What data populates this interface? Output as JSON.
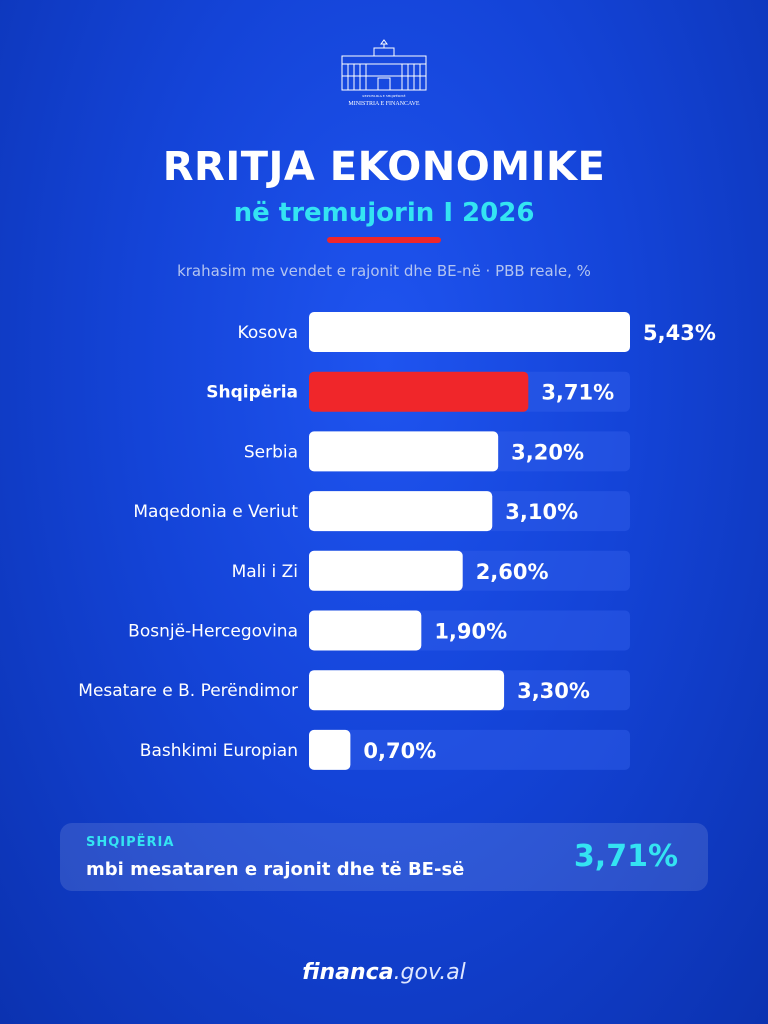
{
  "logo": {
    "line1": "REPUBLIKA E SHQIPËRISË",
    "line2": "MINISTRIA E FINANCAVE"
  },
  "title": "RRITJA EKONOMIKE",
  "subtitle": "në tremujorin I 2026",
  "caption": "krahasim me vendet e rajonit dhe BE-në · PBB reale, %",
  "colors": {
    "bar": "#ffffff",
    "highlight": "#f0262a",
    "track": "#2e5be8",
    "accent": "#34e4f2"
  },
  "chart_data": {
    "type": "bar",
    "orientation": "horizontal",
    "categories": [
      "Kosova",
      "Shqipëria",
      "Serbia",
      "Maqedonia e Veriut",
      "Mali i Zi",
      "Bosnjë-Hercegovina",
      "Mesatare e B. Perëndimor",
      "Bashkimi Europian"
    ],
    "values": [
      5.43,
      3.71,
      3.2,
      3.1,
      2.6,
      1.9,
      3.3,
      0.7
    ],
    "value_labels": [
      "5,43%",
      "3,71%",
      "3,20%",
      "3,10%",
      "2,60%",
      "1,90%",
      "3,30%",
      "0,70%"
    ],
    "highlight_index": 1,
    "xlim": [
      0,
      5.43
    ]
  },
  "summary": {
    "label": "SHQIPËRIA",
    "text": "mbi mesataren e rajonit dhe të BE-së",
    "value": "3,71%"
  },
  "footer": {
    "bold": "financa",
    "rest": ".gov.al"
  }
}
